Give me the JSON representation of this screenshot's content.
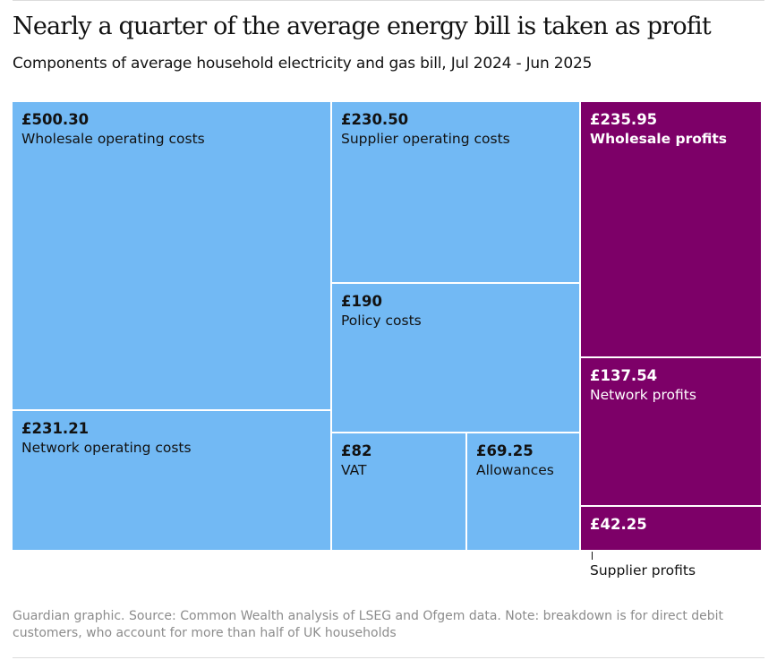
{
  "title": "Nearly a quarter of the average energy bill is taken as profit",
  "subtitle": "Components of average household electricity and gas bill, Jul 2024 - Jun 2025",
  "source": "Guardian graphic. Source: Common Wealth analysis of LSEG and Ofgem data. Note: breakdown is for direct debit customers, who account for more than half of UK households",
  "colors": {
    "operating": "#72b9f4",
    "profit": "#7d0068"
  },
  "chart_data": {
    "type": "treemap",
    "title": "Nearly a quarter of the average energy bill is taken as profit",
    "subtitle": "Components of average household electricity and gas bill, Jul 2024 - Jun 2025",
    "unit": "£",
    "items": [
      {
        "id": "wholesale-operating",
        "value_label": "£500.30",
        "value": 500.3,
        "label": "Wholesale operating costs",
        "group": "operating"
      },
      {
        "id": "network-operating",
        "value_label": "£231.21",
        "value": 231.21,
        "label": "Network operating costs",
        "group": "operating"
      },
      {
        "id": "supplier-operating",
        "value_label": "£230.50",
        "value": 230.5,
        "label": "Supplier operating costs",
        "group": "operating"
      },
      {
        "id": "policy",
        "value_label": "£190",
        "value": 190,
        "label": "Policy costs",
        "group": "operating"
      },
      {
        "id": "vat",
        "value_label": "£82",
        "value": 82,
        "label": "VAT",
        "group": "operating"
      },
      {
        "id": "allowances",
        "value_label": "£69.25",
        "value": 69.25,
        "label": "Allowances",
        "group": "operating"
      },
      {
        "id": "wholesale-profits",
        "value_label": "£235.95",
        "value": 235.95,
        "label": "Wholesale profits",
        "group": "profit"
      },
      {
        "id": "network-profits",
        "value_label": "£137.54",
        "value": 137.54,
        "label": "Network profits",
        "group": "profit"
      },
      {
        "id": "supplier-profits",
        "value_label": "£42.25",
        "value": 42.25,
        "label": "Supplier profits",
        "group": "profit"
      }
    ]
  }
}
